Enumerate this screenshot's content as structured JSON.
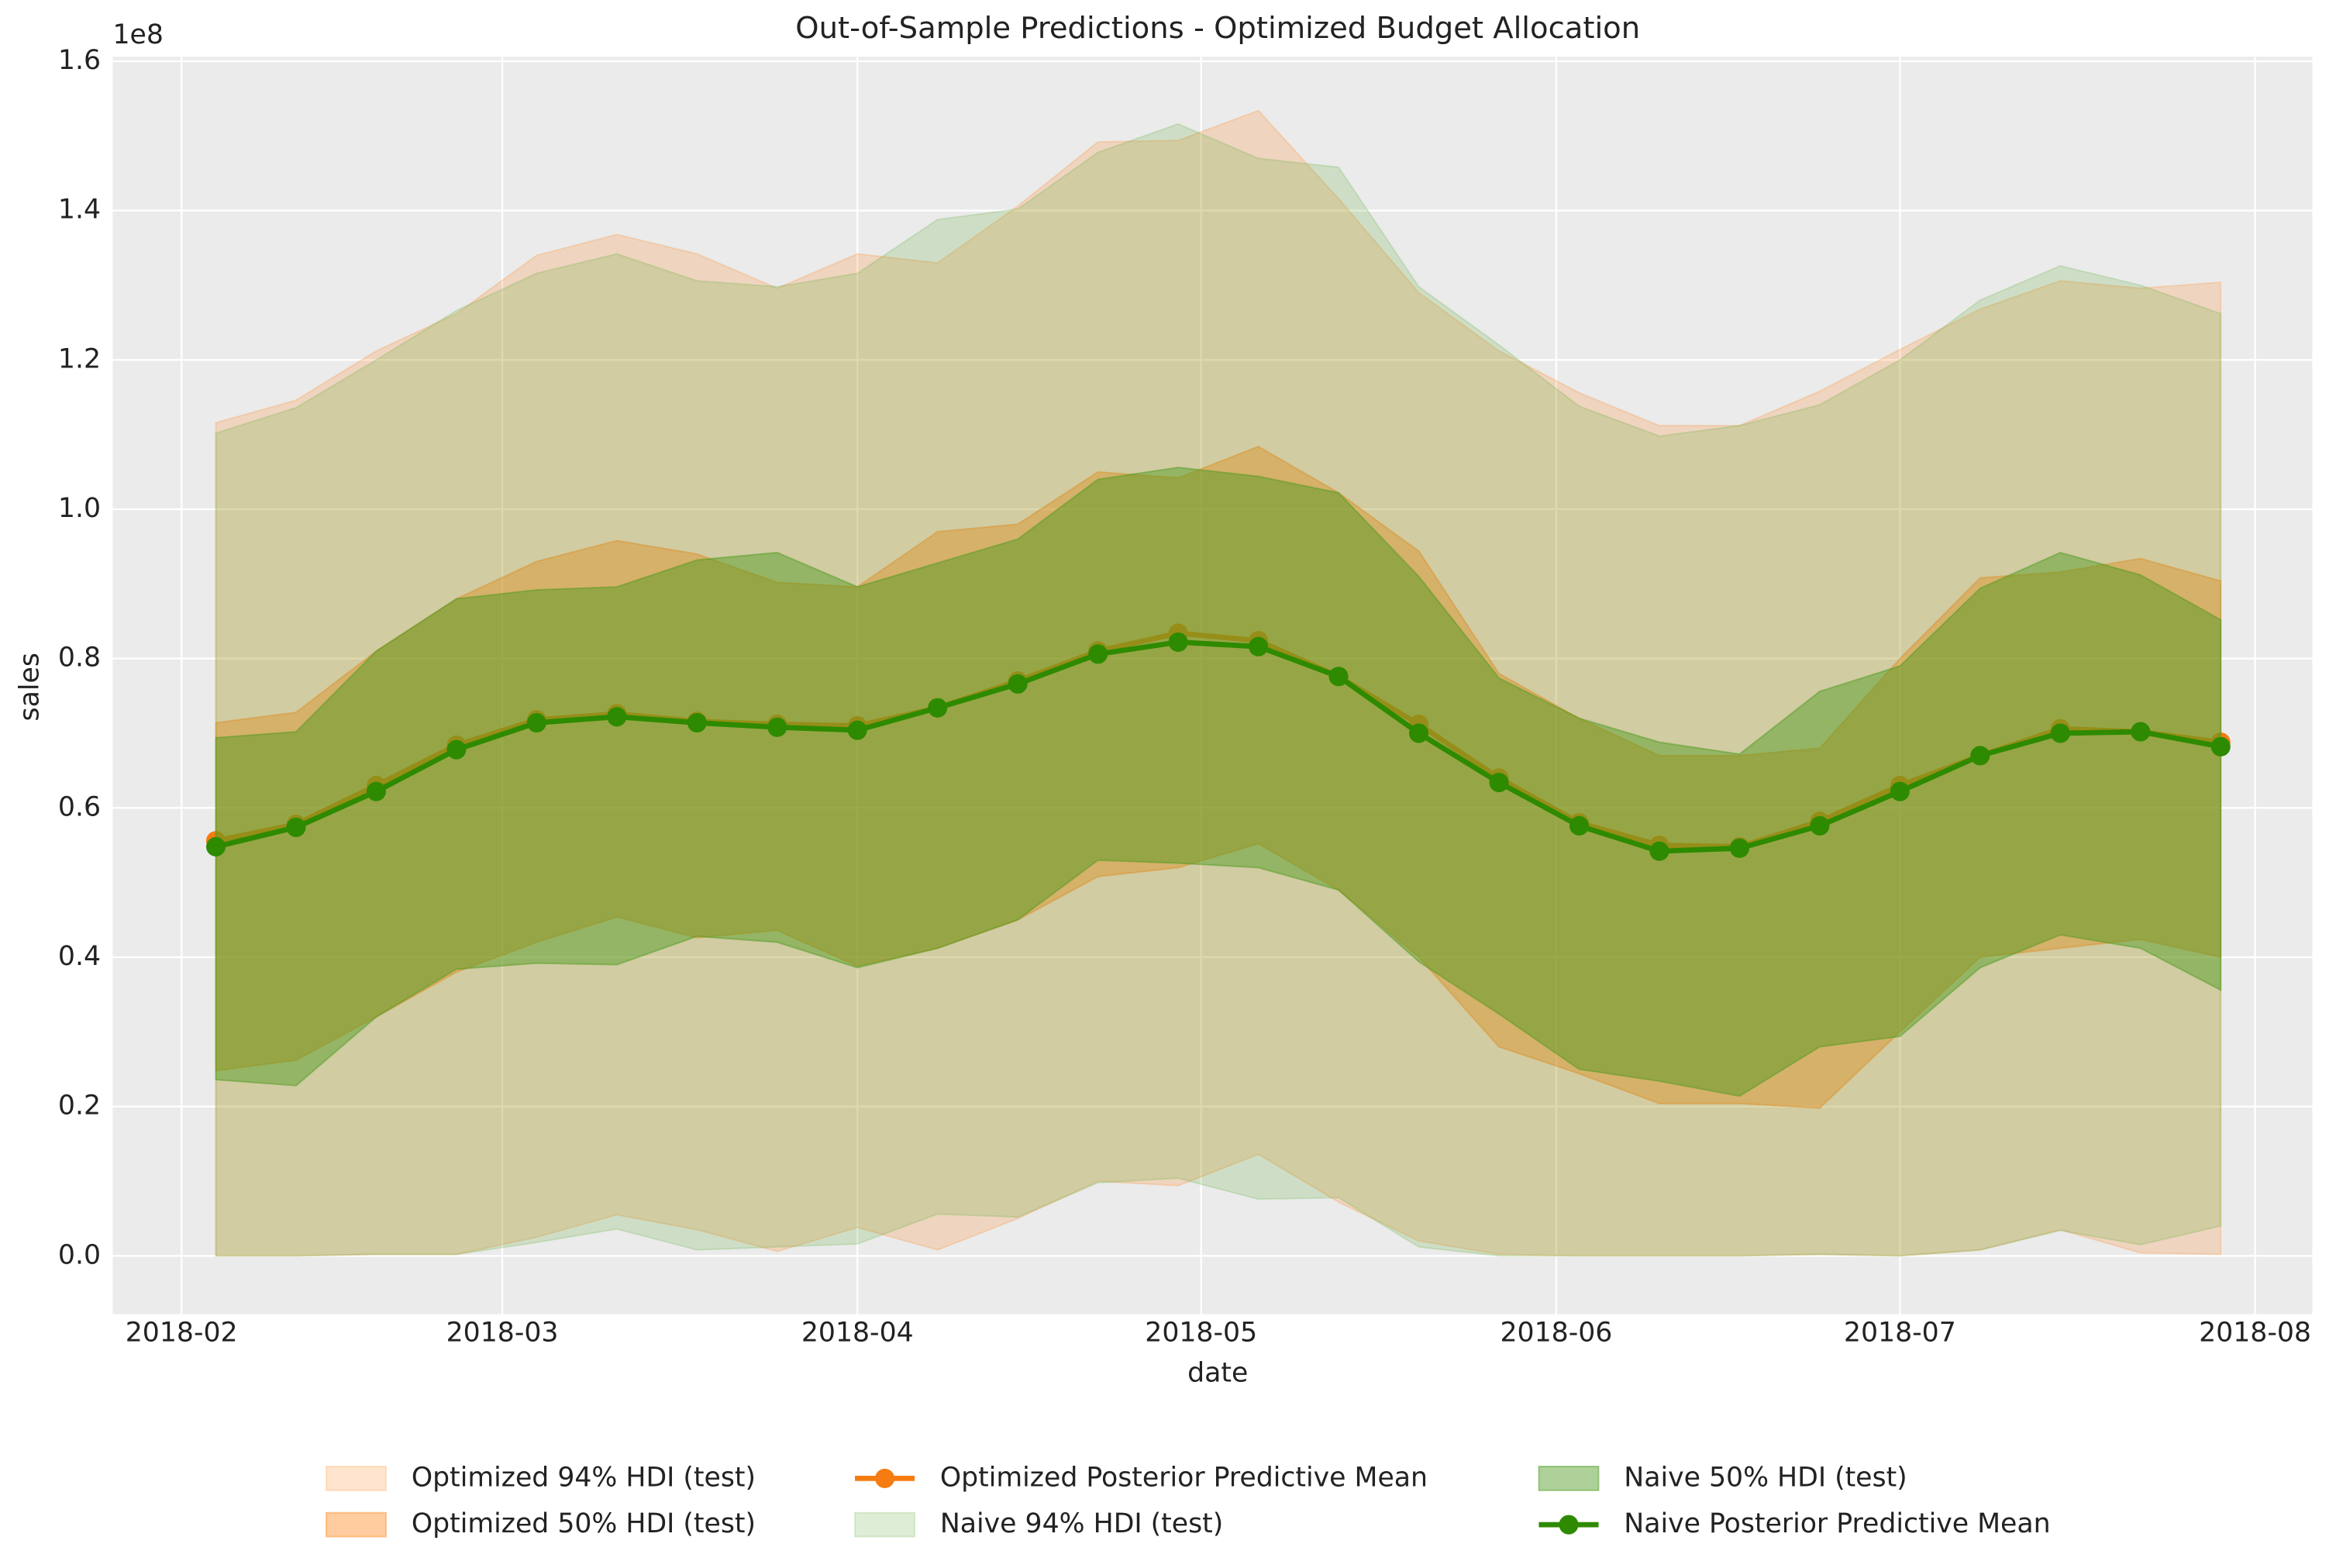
{
  "chart_data": {
    "type": "line",
    "title": "Out-of-Sample Predictions - Optimized Budget Allocation",
    "x_label": "date",
    "y_label": "sales",
    "y_offset_label": "1e8",
    "x": [
      "2018-02-04",
      "2018-02-11",
      "2018-02-18",
      "2018-02-25",
      "2018-03-04",
      "2018-03-11",
      "2018-03-18",
      "2018-03-25",
      "2018-04-01",
      "2018-04-08",
      "2018-04-15",
      "2018-04-22",
      "2018-04-29",
      "2018-05-06",
      "2018-05-13",
      "2018-05-20",
      "2018-05-27",
      "2018-06-03",
      "2018-06-10",
      "2018-06-17",
      "2018-06-24",
      "2018-07-01",
      "2018-07-08",
      "2018-07-15",
      "2018-07-22",
      "2018-07-29"
    ],
    "xlim": [
      "2018-01-26",
      "2018-08-06"
    ],
    "xticks": [
      {
        "value": "2018-02-01",
        "label": "2018-02"
      },
      {
        "value": "2018-03-01",
        "label": "2018-03"
      },
      {
        "value": "2018-04-01",
        "label": "2018-04"
      },
      {
        "value": "2018-05-01",
        "label": "2018-05"
      },
      {
        "value": "2018-06-01",
        "label": "2018-06"
      },
      {
        "value": "2018-07-01",
        "label": "2018-07"
      },
      {
        "value": "2018-08-01",
        "label": "2018-08"
      }
    ],
    "ylim": [
      -0.078,
      1.606
    ],
    "yticks": [
      {
        "value": 0,
        "label": "0.0"
      },
      {
        "value": 0.2,
        "label": "0.2"
      },
      {
        "value": 0.4,
        "label": "0.4"
      },
      {
        "value": 0.6,
        "label": "0.6"
      },
      {
        "value": 0.8,
        "label": "0.8"
      },
      {
        "value": 1,
        "label": "1.0"
      },
      {
        "value": 1.2,
        "label": "1.2"
      },
      {
        "value": 1.4,
        "label": "1.4"
      },
      {
        "value": 1.6,
        "label": "1.6"
      }
    ],
    "grid": true,
    "legend": "bottom",
    "series": [
      {
        "name": "Optimized 94% HDI (test)",
        "kind": "band",
        "color": "#ff7f0e",
        "opacity": 0.2,
        "lower": [
          0,
          0,
          0.002,
          0.002,
          0.025,
          0.055,
          0.035,
          0.006,
          0.038,
          0.008,
          0.05,
          0.1,
          0.094,
          0.136,
          0.072,
          0.02,
          0.002,
          0,
          0,
          0,
          0.002,
          0,
          0.008,
          0.035,
          0.004,
          0.002
        ],
        "upper": [
          1.116,
          1.146,
          1.212,
          1.262,
          1.34,
          1.368,
          1.342,
          1.296,
          1.342,
          1.33,
          1.406,
          1.492,
          1.494,
          1.534,
          1.416,
          1.29,
          1.212,
          1.156,
          1.112,
          1.112,
          1.158,
          1.214,
          1.268,
          1.306,
          1.296,
          1.304
        ]
      },
      {
        "name": "Optimized 50% HDI (test)",
        "kind": "band",
        "color": "#ff7f0e",
        "opacity": 0.4,
        "lower": [
          0.248,
          0.262,
          0.32,
          0.38,
          0.42,
          0.454,
          0.426,
          0.436,
          0.388,
          0.412,
          0.45,
          0.508,
          0.52,
          0.552,
          0.49,
          0.4,
          0.28,
          0.244,
          0.204,
          0.204,
          0.198,
          0.3,
          0.4,
          0.412,
          0.424,
          0.4
        ],
        "upper": [
          0.714,
          0.728,
          0.81,
          0.88,
          0.93,
          0.958,
          0.94,
          0.902,
          0.896,
          0.97,
          0.98,
          1.05,
          1.042,
          1.084,
          1.022,
          0.944,
          0.78,
          0.72,
          0.67,
          0.67,
          0.68,
          0.8,
          0.908,
          0.916,
          0.934,
          0.904
        ]
      },
      {
        "name": "Optimized Posterior Predictive Mean",
        "kind": "line",
        "color": "#f57c10",
        "values": [
          0.556,
          0.578,
          0.63,
          0.684,
          0.718,
          0.726,
          0.716,
          0.712,
          0.71,
          0.734,
          0.77,
          0.81,
          0.834,
          0.824,
          0.776,
          0.712,
          0.64,
          0.58,
          0.55,
          0.548,
          0.582,
          0.63,
          0.67,
          0.706,
          0.702,
          0.688
        ]
      },
      {
        "name": "Naive 94% HDI (test)",
        "kind": "band",
        "color": "#5aa832",
        "opacity": 0.2,
        "lower": [
          0,
          0,
          0.002,
          0.002,
          0.018,
          0.036,
          0.008,
          0.012,
          0.016,
          0.056,
          0.052,
          0.098,
          0.104,
          0.076,
          0.078,
          0.012,
          0,
          0,
          0,
          0,
          0.002,
          0,
          0.008,
          0.034,
          0.015,
          0.04
        ],
        "upper": [
          1.102,
          1.136,
          1.2,
          1.266,
          1.316,
          1.342,
          1.306,
          1.298,
          1.316,
          1.388,
          1.402,
          1.478,
          1.516,
          1.47,
          1.458,
          1.298,
          1.22,
          1.138,
          1.098,
          1.112,
          1.14,
          1.2,
          1.28,
          1.326,
          1.3,
          1.262
        ]
      },
      {
        "name": "Naive 50% HDI (test)",
        "kind": "band",
        "color": "#4a9a1a",
        "opacity": 0.45,
        "lower": [
          0.236,
          0.228,
          0.32,
          0.384,
          0.392,
          0.39,
          0.428,
          0.42,
          0.386,
          0.412,
          0.45,
          0.53,
          0.526,
          0.52,
          0.49,
          0.394,
          0.324,
          0.25,
          0.234,
          0.214,
          0.28,
          0.294,
          0.386,
          0.43,
          0.412,
          0.356
        ],
        "upper": [
          0.694,
          0.702,
          0.81,
          0.88,
          0.892,
          0.896,
          0.932,
          0.942,
          0.896,
          0.928,
          0.96,
          1.04,
          1.056,
          1.044,
          1.022,
          0.91,
          0.774,
          0.72,
          0.688,
          0.672,
          0.756,
          0.79,
          0.894,
          0.942,
          0.912,
          0.852
        ]
      },
      {
        "name": "Naive Posterior Predictive Mean",
        "kind": "line",
        "color": "#2e8a00",
        "values": [
          0.548,
          0.574,
          0.622,
          0.678,
          0.714,
          0.722,
          0.714,
          0.708,
          0.704,
          0.734,
          0.766,
          0.806,
          0.822,
          0.816,
          0.776,
          0.7,
          0.634,
          0.576,
          0.542,
          0.546,
          0.576,
          0.622,
          0.67,
          0.7,
          0.702,
          0.682
        ]
      }
    ]
  }
}
